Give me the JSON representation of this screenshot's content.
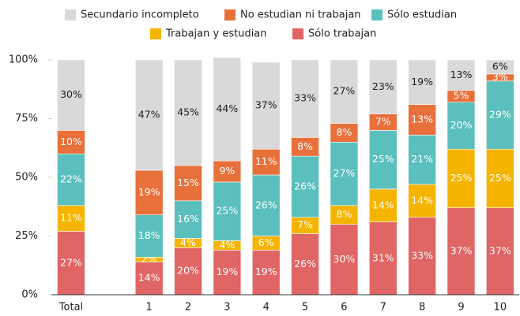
{
  "chart_data": {
    "type": "stacked-bar",
    "categories": [
      "Total",
      null,
      "1",
      "2",
      "3",
      "4",
      "5",
      "6",
      "7",
      "8",
      "9",
      "10"
    ],
    "series": [
      {
        "name": "Sólo trabajan",
        "color": "#e06565",
        "values": [
          27,
          null,
          14,
          20,
          19,
          19,
          26,
          30,
          31,
          33,
          37,
          37
        ],
        "value_labels": [
          "27%",
          null,
          "14%",
          "20%",
          "19%",
          "19%",
          "26%",
          "30%",
          "31%",
          "33%",
          "37%",
          "37%"
        ]
      },
      {
        "name": "Trabajan y estudian",
        "color": "#f4b400",
        "values": [
          11,
          null,
          2,
          4,
          4,
          6,
          7,
          8,
          14,
          14,
          25,
          25
        ],
        "value_labels": [
          "11%",
          null,
          "2%",
          "4%",
          "4%",
          "6%",
          "7%",
          "8%",
          "14%",
          "14%",
          "25%",
          "25%"
        ]
      },
      {
        "name": "Sólo estudian",
        "color": "#5bbfbd",
        "values": [
          22,
          null,
          18,
          16,
          25,
          26,
          26,
          27,
          25,
          21,
          20,
          29
        ],
        "value_labels": [
          "22%",
          null,
          "18%",
          "16%",
          "25%",
          "26%",
          "26%",
          "27%",
          "25%",
          "21%",
          "20%",
          "29%"
        ]
      },
      {
        "name": "No estudian ni trabajan",
        "color": "#e8703a",
        "values": [
          10,
          null,
          19,
          15,
          9,
          11,
          8,
          8,
          7,
          13,
          5,
          3
        ],
        "value_labels": [
          "10%",
          null,
          "19%",
          "15%",
          "9%",
          "11%",
          "8%",
          "8%",
          "7%",
          "13%",
          "5%",
          "3%"
        ]
      },
      {
        "name": "Secundario incompleto",
        "color": "#d9d9d9",
        "values": [
          30,
          null,
          47,
          45,
          44,
          37,
          33,
          27,
          23,
          19,
          13,
          6
        ],
        "value_labels": [
          "30%",
          null,
          "47%",
          "45%",
          "44%",
          "37%",
          "33%",
          "27%",
          "23%",
          "19%",
          "13%",
          "6%"
        ]
      }
    ],
    "ylim": [
      0,
      100
    ],
    "yticks": [
      {
        "value": 0,
        "label": "0%"
      },
      {
        "value": 25,
        "label": "25%"
      },
      {
        "value": 50,
        "label": "50%"
      },
      {
        "value": 75,
        "label": "75%"
      },
      {
        "value": 100,
        "label": "100%"
      }
    ],
    "grid": false
  }
}
